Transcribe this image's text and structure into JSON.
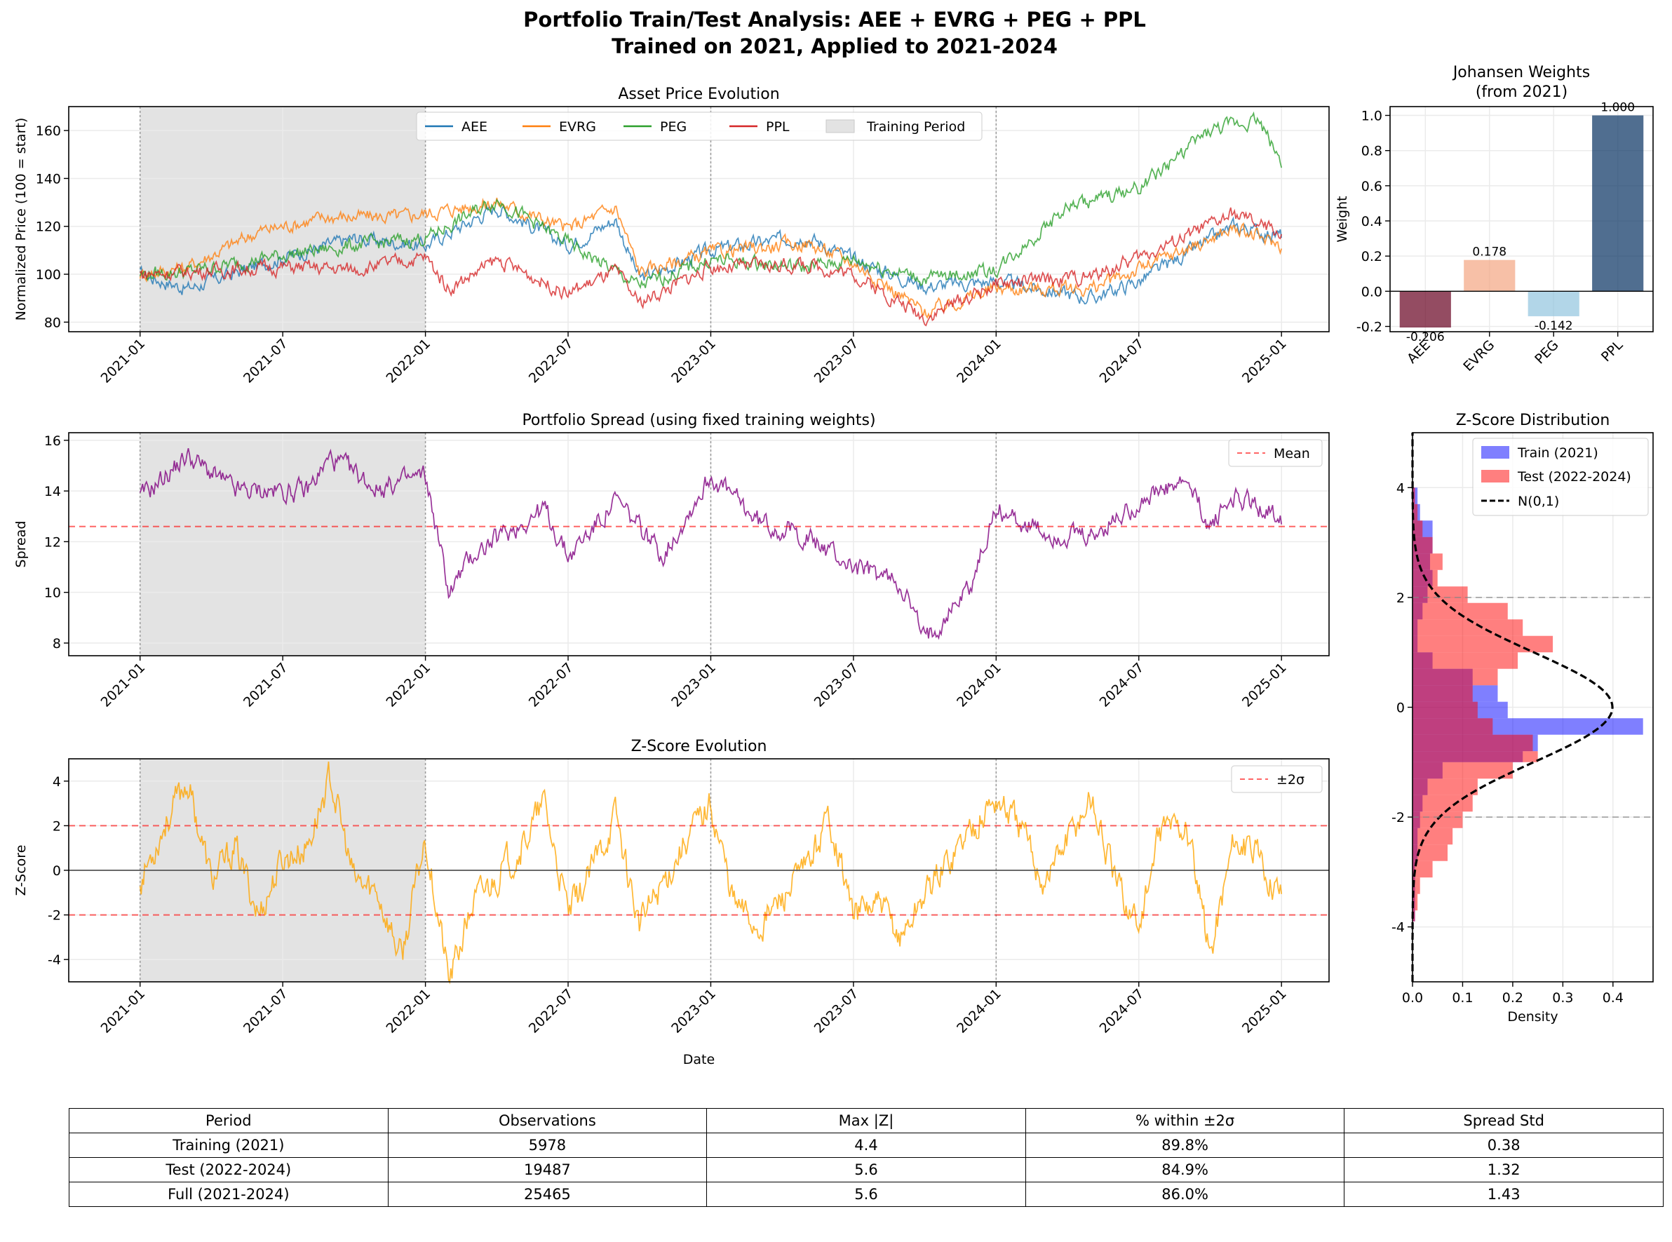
{
  "figure": {
    "title_line1": "Portfolio Train/Test Analysis: AEE + EVRG + PEG + PPL",
    "title_line2": "Trained on 2021, Applied to 2021-2024"
  },
  "colors": {
    "AEE": "#1f77b4",
    "EVRG": "#ff7f0e",
    "PEG": "#2ca02c",
    "PPL": "#d62728",
    "spread": "#800080",
    "zscore": "#ffa500",
    "mean_line": "#ff0000",
    "train_hist": "#0000ff",
    "test_hist": "#ff0000",
    "training_shade": "#e3e3e3"
  },
  "date_ticks": [
    "2021-01",
    "2021-07",
    "2022-01",
    "2022-07",
    "2023-01",
    "2023-07",
    "2024-01",
    "2024-07",
    "2025-01"
  ],
  "chart_data": [
    {
      "id": "prices",
      "type": "line",
      "title": "Asset Price Evolution",
      "xlabel": "",
      "ylabel": "Normalized Price (100 = start)",
      "ylim": [
        76,
        170
      ],
      "yticks": [
        80,
        100,
        120,
        140,
        160
      ],
      "xlim": [
        "2020-10-01",
        "2025-03-01"
      ],
      "training_period": [
        "2021-01-01",
        "2022-01-01"
      ],
      "legend": {
        "placement": "top-center",
        "training_label": "Training Period"
      },
      "grid": true,
      "series": [
        {
          "name": "AEE",
          "x": [
            "2021-01",
            "2021-03",
            "2021-07",
            "2021-10",
            "2022-01",
            "2022-04",
            "2022-07",
            "2022-09",
            "2022-10",
            "2023-01",
            "2023-05",
            "2023-07",
            "2023-10",
            "2024-01",
            "2024-05",
            "2024-07",
            "2024-11",
            "2025-01"
          ],
          "values": [
            100,
            94,
            107,
            115,
            112,
            128,
            112,
            123,
            98,
            110,
            116,
            106,
            95,
            97,
            90,
            97,
            120,
            116
          ]
        },
        {
          "name": "EVRG",
          "x": [
            "2021-01",
            "2021-03",
            "2021-06",
            "2021-09",
            "2021-12",
            "2022-04",
            "2022-07",
            "2022-09",
            "2022-10",
            "2023-01",
            "2023-05",
            "2023-07",
            "2023-10",
            "2024-01",
            "2024-05",
            "2024-07",
            "2024-11",
            "2025-01"
          ],
          "values": [
            100,
            103,
            118,
            124,
            124,
            130,
            119,
            128,
            101,
            109,
            113,
            105,
            84,
            94,
            94,
            102,
            119,
            112
          ]
        },
        {
          "name": "PEG",
          "x": [
            "2021-01",
            "2021-03",
            "2021-07",
            "2021-10",
            "2022-01",
            "2022-04",
            "2022-07",
            "2022-10",
            "2023-01",
            "2023-05",
            "2023-07",
            "2023-10",
            "2024-01",
            "2024-04",
            "2024-07",
            "2024-10",
            "2024-12",
            "2025-01"
          ],
          "values": [
            100,
            101,
            108,
            112,
            115,
            131,
            113,
            95,
            106,
            103,
            106,
            98,
            102,
            128,
            136,
            160,
            165,
            147
          ]
        },
        {
          "name": "PPL",
          "x": [
            "2021-01",
            "2021-03",
            "2021-07",
            "2021-10",
            "2022-01",
            "2022-02",
            "2022-04",
            "2022-07",
            "2022-09",
            "2022-10",
            "2023-01",
            "2023-05",
            "2023-07",
            "2023-10",
            "2024-01",
            "2024-05",
            "2024-07",
            "2024-11",
            "2025-01"
          ],
          "values": [
            100,
            101,
            103,
            102,
            107,
            94,
            106,
            92,
            101,
            88,
            103,
            104,
            100,
            82,
            96,
            99,
            107,
            125,
            117
          ]
        }
      ]
    },
    {
      "id": "weights",
      "type": "bar",
      "title": "Johansen Weights",
      "subtitle": "(from 2021)",
      "xlabel": "",
      "ylabel": "Weight",
      "categories": [
        "AEE",
        "EVRG",
        "PEG",
        "PPL"
      ],
      "values": [
        -0.206,
        0.178,
        -0.142,
        1.0
      ],
      "labels": [
        "-0.206",
        "0.178",
        "-0.142",
        "1.000"
      ],
      "bar_colors": [
        "#67001f",
        "#f4a582",
        "#92c5de",
        "#053061"
      ],
      "ylim": [
        -0.23,
        1.05
      ],
      "yticks": [
        -0.2,
        0.0,
        0.2,
        0.4,
        0.6,
        0.8,
        1.0
      ],
      "grid": true
    },
    {
      "id": "spread",
      "type": "line",
      "title": "Portfolio Spread (using fixed training weights)",
      "xlabel": "",
      "ylabel": "Spread",
      "ylim": [
        7.5,
        16.3
      ],
      "yticks": [
        8,
        10,
        12,
        14,
        16
      ],
      "xlim": [
        "2020-10-01",
        "2025-03-01"
      ],
      "training_period": [
        "2021-01-01",
        "2022-01-01"
      ],
      "legend": {
        "placement": "top-right",
        "mean_label": "Mean"
      },
      "mean": 12.6,
      "grid": true,
      "series": [
        {
          "name": "Spread",
          "x": [
            "2021-01",
            "2021-03",
            "2021-05",
            "2021-08",
            "2021-09",
            "2021-11",
            "2022-01",
            "2022-02",
            "2022-03",
            "2022-06",
            "2022-07",
            "2022-09",
            "2022-11",
            "2023-01",
            "2023-03",
            "2023-05",
            "2023-07",
            "2023-09",
            "2023-10",
            "2023-12",
            "2024-01",
            "2024-03",
            "2024-05",
            "2024-07",
            "2024-09",
            "2024-10",
            "2024-11",
            "2025-01"
          ],
          "values": [
            13.7,
            15.4,
            14.0,
            14.0,
            15.3,
            14.1,
            14.6,
            10.0,
            11.5,
            13.3,
            11.4,
            13.6,
            11.5,
            14.6,
            12.8,
            12.2,
            11.0,
            10.4,
            8.1,
            10.4,
            13.3,
            12.3,
            12.1,
            13.6,
            14.3,
            12.6,
            13.8,
            13.0
          ]
        }
      ]
    },
    {
      "id": "zscore",
      "type": "line",
      "title": "Z-Score Evolution",
      "xlabel": "Date",
      "ylabel": "Z-Score",
      "ylim": [
        -5,
        5
      ],
      "yticks": [
        -4,
        -2,
        0,
        2,
        4
      ],
      "xlim": [
        "2020-10-01",
        "2025-03-01"
      ],
      "training_period": [
        "2021-01-01",
        "2022-01-01"
      ],
      "legend": {
        "placement": "top-right",
        "band_label": "±2σ"
      },
      "bands": [
        -2,
        2
      ],
      "grid": true,
      "series": [
        {
          "name": "Z-Score",
          "x": [
            "2021-01",
            "2021-02",
            "2021-03",
            "2021-04",
            "2021-05",
            "2021-06",
            "2021-07",
            "2021-08",
            "2021-09",
            "2021-10",
            "2021-11",
            "2021-12",
            "2022-01",
            "2022-02",
            "2022-03",
            "2022-05",
            "2022-06",
            "2022-07",
            "2022-08",
            "2022-09",
            "2022-10",
            "2022-12",
            "2023-01",
            "2023-02",
            "2023-03",
            "2023-05",
            "2023-06",
            "2023-07",
            "2023-08",
            "2023-09",
            "2023-10",
            "2023-12",
            "2024-01",
            "2024-02",
            "2024-03",
            "2024-05",
            "2024-06",
            "2024-07",
            "2024-08",
            "2024-09",
            "2024-10",
            "2024-11",
            "2024-12",
            "2025-01"
          ],
          "values": [
            -0.5,
            2.0,
            4.0,
            -0.5,
            1.0,
            -2.0,
            0.5,
            1.0,
            4.2,
            -0.5,
            -1.0,
            -4.0,
            1.5,
            -5.0,
            -1.5,
            1.0,
            3.0,
            -2.0,
            0.0,
            2.5,
            -2.5,
            1.5,
            3.0,
            -1.5,
            -2.5,
            0.0,
            2.5,
            -2.0,
            -1.5,
            -3.0,
            -1.0,
            2.0,
            3.2,
            2.0,
            -0.5,
            3.3,
            -0.5,
            -2.5,
            2.0,
            2.0,
            -3.8,
            1.5,
            0.5,
            -1.0
          ]
        }
      ]
    },
    {
      "id": "zdist",
      "type": "histogram",
      "orientation": "horizontal",
      "title": "Z-Score Distribution",
      "xlabel": "Density",
      "ylabel": "",
      "xlim": [
        0,
        0.48
      ],
      "xticks": [
        0.0,
        0.1,
        0.2,
        0.3,
        0.4
      ],
      "ylim": [
        -5,
        5
      ],
      "yticks": [
        -4,
        -2,
        0,
        2,
        4
      ],
      "reference_lines": [
        -2,
        2
      ],
      "legend": {
        "placement": "top-right",
        "train_label": "Train (2021)",
        "test_label": "Test (2022-2024)",
        "normal_label": "N(0,1)"
      },
      "grid": true,
      "bin_edges": [
        -3.9,
        -3.7,
        -3.4,
        -3.1,
        -2.8,
        -2.5,
        -2.2,
        -1.9,
        -1.6,
        -1.3,
        -1.0,
        -0.8,
        -0.5,
        -0.2,
        0.1,
        0.4,
        0.7,
        1.0,
        1.3,
        1.6,
        1.9,
        2.2,
        2.5,
        2.8,
        3.1,
        3.4,
        3.7,
        4.0
      ],
      "train_density": [
        0.005,
        0.005,
        0.005,
        0.005,
        0.01,
        0.01,
        0.015,
        0.02,
        0.03,
        0.06,
        0.22,
        0.25,
        0.46,
        0.19,
        0.17,
        0.12,
        0.04,
        0.01,
        0.01,
        0.02,
        0.03,
        0.04,
        0.035,
        0.04,
        0.04,
        0.015,
        0.01
      ],
      "test_density": [
        0.005,
        0.01,
        0.015,
        0.04,
        0.07,
        0.08,
        0.1,
        0.12,
        0.13,
        0.2,
        0.25,
        0.24,
        0.16,
        0.13,
        0.12,
        0.17,
        0.21,
        0.28,
        0.22,
        0.19,
        0.11,
        0.05,
        0.06,
        0.04,
        0.02,
        0.01,
        0.005
      ]
    }
  ],
  "stats_table": {
    "headers": [
      "Period",
      "Observations",
      "Max |Z|",
      "% within ±2σ",
      "Spread Std"
    ],
    "rows": [
      [
        "Training (2021)",
        "5978",
        "4.4",
        "89.8%",
        "0.38"
      ],
      [
        "Test (2022-2024)",
        "19487",
        "5.6",
        "84.9%",
        "1.32"
      ],
      [
        "Full (2021-2024)",
        "25465",
        "5.6",
        "86.0%",
        "1.43"
      ]
    ]
  }
}
